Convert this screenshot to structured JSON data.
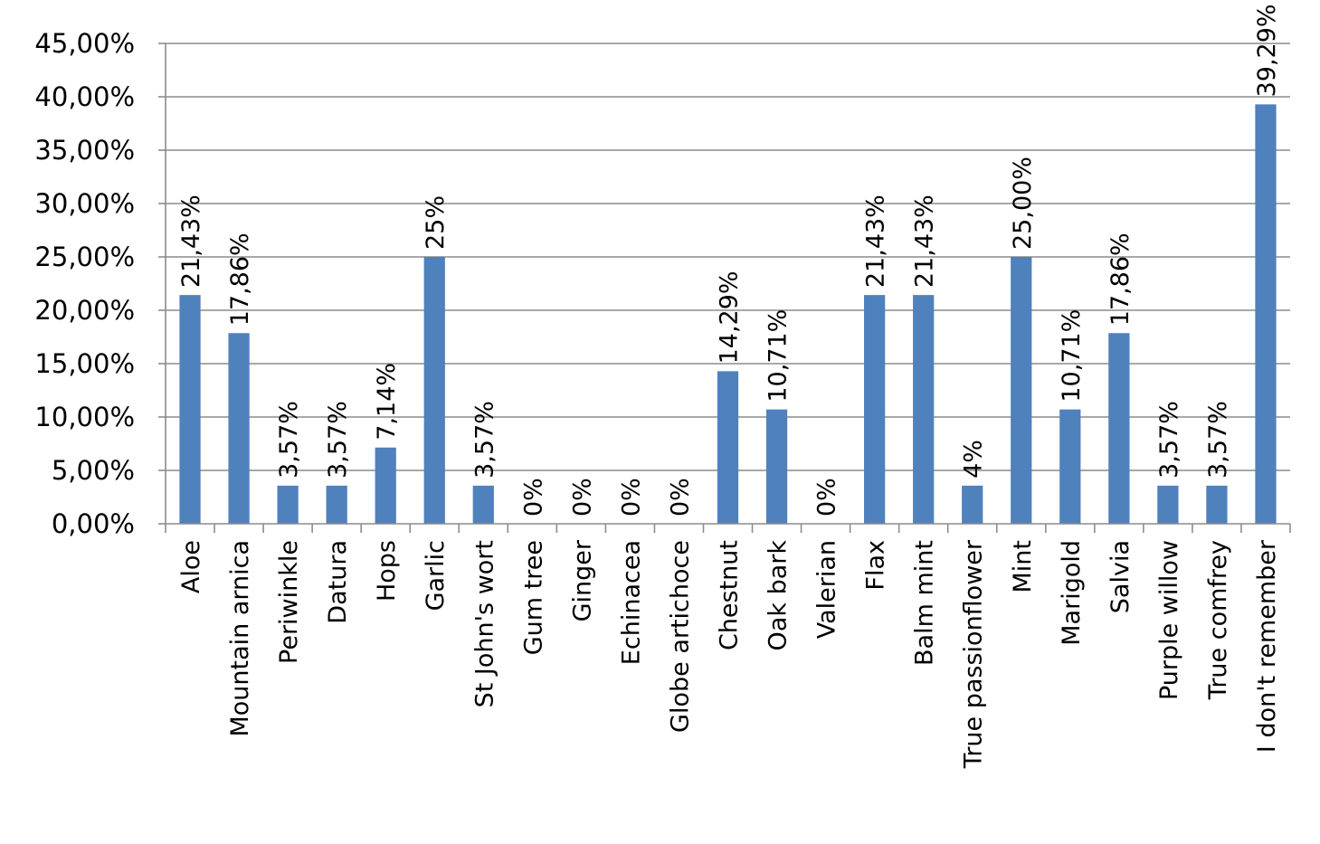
{
  "chart_data": {
    "type": "bar",
    "title": "",
    "xlabel": "",
    "ylabel": "",
    "ylim": [
      0,
      45
    ],
    "yticks": [
      0,
      5,
      10,
      15,
      20,
      25,
      30,
      35,
      40,
      45
    ],
    "ytick_labels": [
      "0,00%",
      "5,00%",
      "10,00%",
      "15,00%",
      "20,00%",
      "25,00%",
      "30,00%",
      "35,00%",
      "40,00%",
      "45,00%"
    ],
    "grid": true,
    "legend": "none",
    "bar_color": "#4f81bd",
    "categories": [
      "Aloe",
      "Mountain arnica",
      "Periwinkle",
      "Datura",
      "Hops",
      "Garlic",
      "St John's wort",
      "Gum tree",
      "Ginger",
      "Echinacea",
      "Globe artichoce",
      "Chestnut",
      "Oak bark",
      "Valerian",
      "Flax",
      "Balm mint",
      "True passionflower",
      "Mint",
      "Marigold",
      "Salvia",
      "Purple willow",
      "True comfrey",
      "I don't remember"
    ],
    "values": [
      21.43,
      17.86,
      3.57,
      3.57,
      7.14,
      25,
      3.57,
      0,
      0,
      0,
      0,
      14.29,
      10.71,
      0,
      21.43,
      21.43,
      3.57,
      25,
      10.71,
      17.86,
      3.57,
      3.57,
      39.29
    ],
    "data_labels": [
      "21,43%",
      "17,86%",
      "3,57%",
      "3,57%",
      "7,14%",
      "25%",
      "3,57%",
      "0%",
      "0%",
      "0%",
      "0%",
      "14,29%",
      "10,71%",
      "0%",
      "21,43%",
      "21,43%",
      "4%",
      "25,00%",
      "10,71%",
      "17,86%",
      "3,57%",
      "3,57%",
      "39,29%"
    ]
  }
}
